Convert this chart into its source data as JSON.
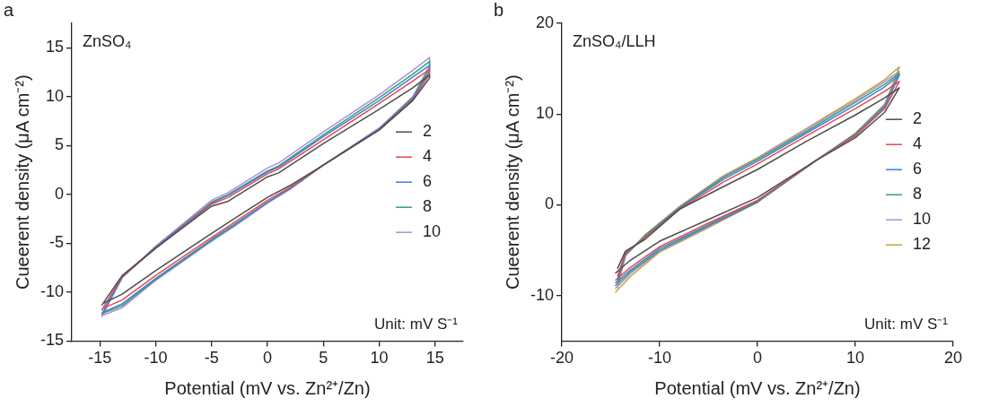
{
  "chart_data": [
    {
      "type": "line",
      "xlabel": "Potential (mV vs. Zn²⁺/Zn)",
      "ylabel": "Cueerent density (μA cm⁻²)",
      "annotations": [
        "a",
        "ZnSO₄",
        "Unit: mV S⁻¹"
      ],
      "xlim": [
        -17.5,
        17.5
      ],
      "xticks": [
        -15,
        -10,
        -5,
        0,
        5,
        10,
        15
      ],
      "ylim": [
        -15,
        17.5
      ],
      "yticks": [
        -15,
        -10,
        -5,
        0,
        5,
        10,
        15
      ],
      "grid": false,
      "legend": "right",
      "marker": "none",
      "line_style": "solid",
      "x": [
        -14.8,
        -13,
        -10,
        -5,
        -3.5,
        0,
        1,
        5,
        10,
        13,
        14.5,
        14.5,
        13,
        10,
        5,
        2,
        0,
        -3,
        -5,
        -10,
        -13,
        -14.6
      ],
      "series": [
        {
          "name": "2",
          "color": "#4d4d4d",
          "values": [
            -11.3,
            -8.3,
            -5.5,
            -1.2,
            -0.7,
            1.8,
            2.2,
            5.2,
            8.7,
            10.9,
            12.2,
            11.9,
            9.6,
            6.6,
            3.0,
            0.9,
            -0.3,
            -2.5,
            -4.0,
            -7.8,
            -10.2,
            -11.1
          ]
        },
        {
          "name": "4",
          "color": "#e8474b",
          "values": [
            -11.8,
            -8.4,
            -5.5,
            -1.0,
            -0.3,
            2.1,
            2.6,
            5.6,
            9.3,
            11.6,
            12.8,
            12.3,
            9.7,
            6.6,
            3.0,
            0.7,
            -0.6,
            -2.9,
            -4.4,
            -8.3,
            -10.8,
            -11.6
          ]
        },
        {
          "name": "6",
          "color": "#3f7fdc",
          "values": [
            -12.2,
            -8.5,
            -5.4,
            -0.9,
            -0.1,
            2.3,
            2.8,
            5.9,
            9.6,
            12.0,
            13.2,
            12.6,
            9.8,
            6.7,
            3.0,
            0.6,
            -0.8,
            -3.1,
            -4.6,
            -8.6,
            -11.2,
            -12.0
          ]
        },
        {
          "name": "8",
          "color": "#3aa06a",
          "values": [
            -12.3,
            -8.5,
            -5.4,
            -0.8,
            0.0,
            2.4,
            2.9,
            6.1,
            9.9,
            12.3,
            13.6,
            12.9,
            9.9,
            6.7,
            3.0,
            0.6,
            -0.8,
            -3.2,
            -4.7,
            -8.7,
            -11.4,
            -12.1
          ]
        },
        {
          "name": "10",
          "color": "#b08ed8",
          "values": [
            -12.5,
            -8.5,
            -5.3,
            -0.6,
            0.2,
            2.7,
            3.2,
            6.4,
            10.2,
            12.7,
            14.0,
            13.2,
            10.0,
            6.8,
            3.0,
            0.5,
            -0.9,
            -3.3,
            -4.8,
            -8.8,
            -11.6,
            -12.3
          ]
        }
      ]
    },
    {
      "type": "line",
      "xlabel": "Potential (mV vs. Zn²⁺/Zn)",
      "ylabel": "Cueerent density (μA cm⁻²)",
      "annotations": [
        "b",
        "ZnSO₄/LLH",
        "Unit: mV S⁻¹"
      ],
      "xlim": [
        -20,
        20
      ],
      "xticks": [
        -20,
        -10,
        0,
        10,
        20
      ],
      "ylim": [
        -15,
        20
      ],
      "yticks": [
        -10,
        0,
        10,
        20
      ],
      "grid": false,
      "legend": "right",
      "marker": "none",
      "line_style": "solid",
      "x": [
        -14.5,
        -13,
        -10,
        -5,
        0,
        6,
        10,
        13,
        14.5,
        13,
        10,
        5,
        0,
        -3.5,
        -8,
        -11.5,
        -13.5,
        -14.3
      ],
      "series": [
        {
          "name": "2",
          "color": "#4d4d4d",
          "values": [
            -7.5,
            -6.1,
            -4.0,
            -1.6,
            0.8,
            4.9,
            7.4,
            10.2,
            12.9,
            11.8,
            9.9,
            7.0,
            3.9,
            2.0,
            -0.5,
            -3.8,
            -5.1,
            -7.0
          ]
        },
        {
          "name": "4",
          "color": "#e8474b",
          "values": [
            -8.3,
            -6.9,
            -4.6,
            -2.0,
            0.5,
            4.9,
            7.6,
            10.6,
            13.6,
            12.5,
            10.6,
            7.6,
            4.5,
            2.5,
            -0.5,
            -3.6,
            -5.3,
            -7.8
          ]
        },
        {
          "name": "6",
          "color": "#3f7fdc",
          "values": [
            -8.6,
            -7.2,
            -4.8,
            -2.2,
            0.4,
            4.9,
            7.7,
            10.8,
            14.3,
            13.0,
            11.0,
            7.9,
            4.8,
            2.8,
            -0.4,
            -3.5,
            -5.4,
            -8.1
          ]
        },
        {
          "name": "8",
          "color": "#3aa06a",
          "values": [
            -8.9,
            -7.4,
            -5.0,
            -2.3,
            0.3,
            4.9,
            7.8,
            10.9,
            14.5,
            13.3,
            11.3,
            8.1,
            5.0,
            3.0,
            -0.3,
            -3.4,
            -5.5,
            -8.4
          ]
        },
        {
          "name": "10",
          "color": "#b08ed8",
          "values": [
            -9.2,
            -7.6,
            -5.1,
            -2.4,
            0.3,
            4.9,
            7.8,
            11.0,
            14.7,
            13.6,
            11.5,
            8.3,
            5.1,
            3.1,
            -0.3,
            -3.4,
            -5.6,
            -8.7
          ]
        },
        {
          "name": "12",
          "color": "#c9a13a",
          "values": [
            -9.6,
            -7.9,
            -5.2,
            -2.5,
            0.3,
            4.9,
            7.9,
            11.1,
            15.2,
            13.8,
            11.7,
            8.4,
            5.2,
            3.2,
            -0.2,
            -3.3,
            -5.6,
            -9.1
          ]
        }
      ]
    }
  ]
}
